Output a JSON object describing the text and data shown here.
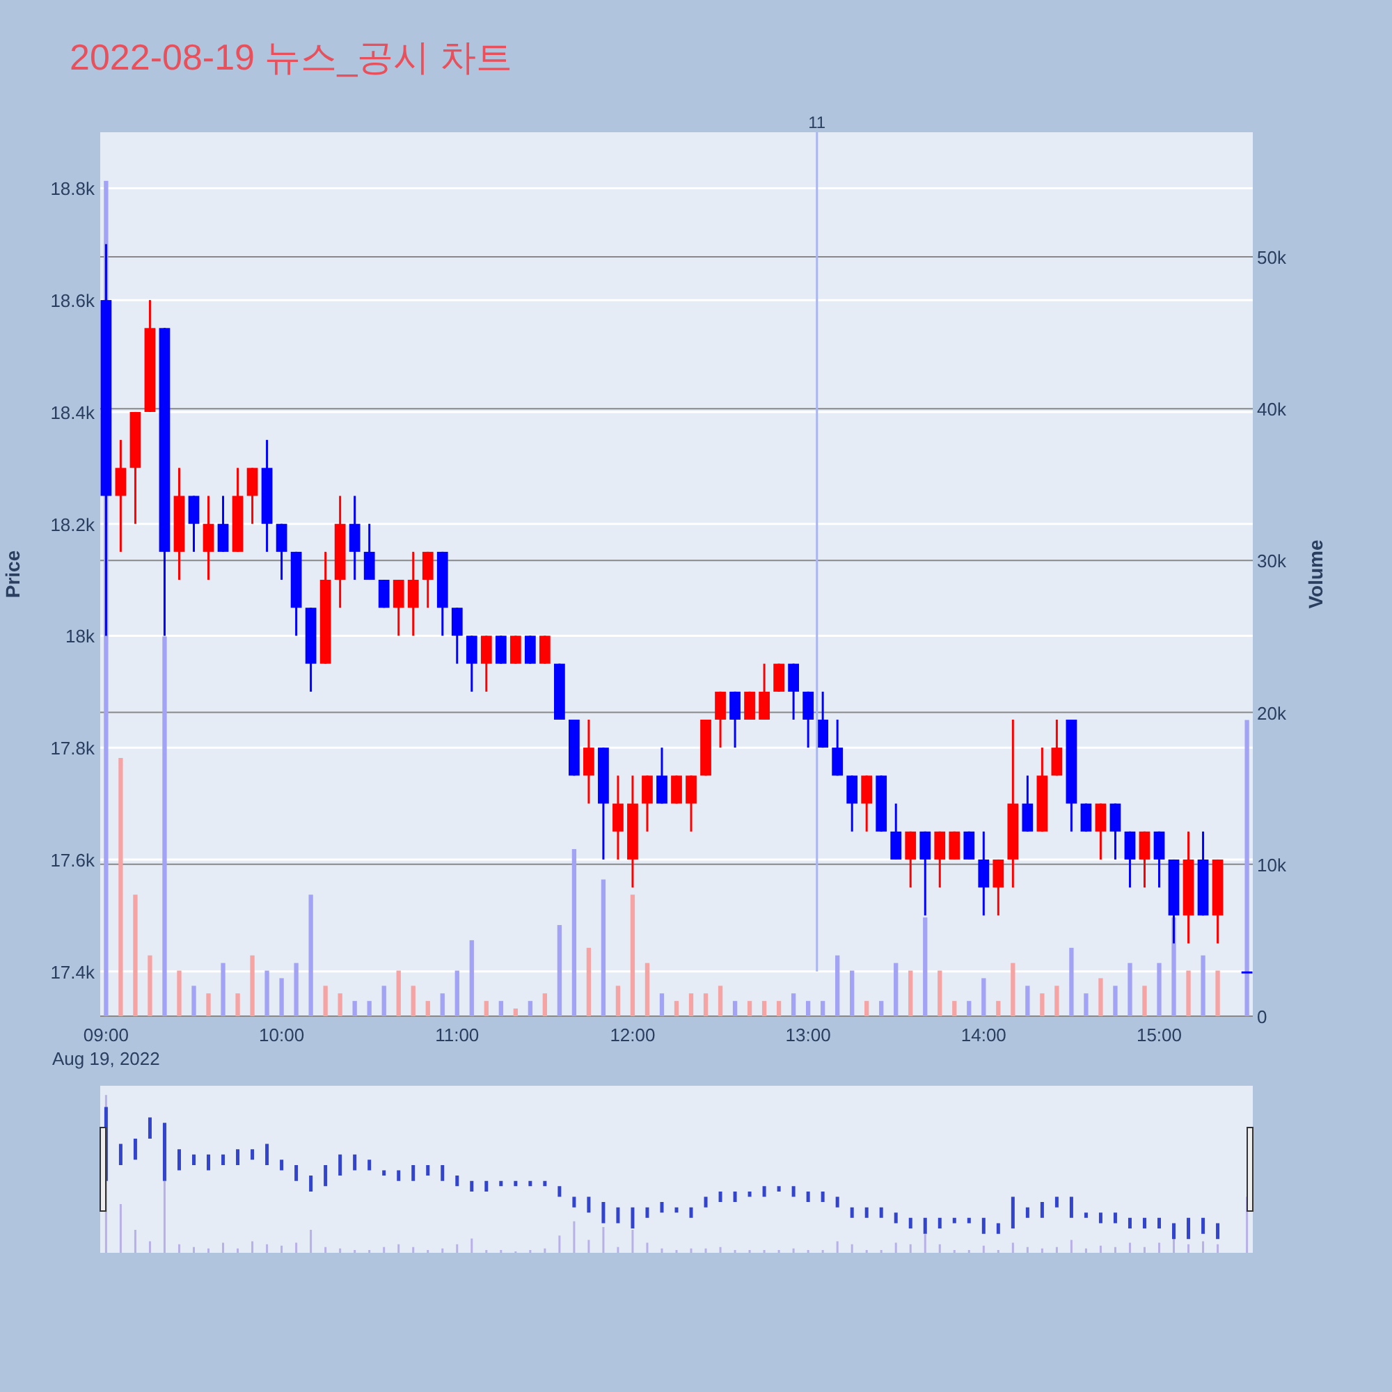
{
  "chart_data": {
    "type": "candlestick",
    "title": "2022-08-19 뉴스_공시 차트",
    "ylabel": "Price",
    "y2label": "Volume",
    "annotations": [
      "Aug 19, 2022"
    ],
    "x": [
      "2022-08-19T09:00",
      "2022-08-19T09:05",
      "2022-08-19T09:10",
      "2022-08-19T09:15",
      "2022-08-19T09:20",
      "2022-08-19T09:25",
      "2022-08-19T09:30",
      "2022-08-19T09:35",
      "2022-08-19T09:40",
      "2022-08-19T09:45",
      "2022-08-19T09:50",
      "2022-08-19T09:55",
      "2022-08-19T10:00",
      "2022-08-19T10:05",
      "2022-08-19T10:10",
      "2022-08-19T10:15",
      "2022-08-19T10:20",
      "2022-08-19T10:25",
      "2022-08-19T10:30",
      "2022-08-19T10:35",
      "2022-08-19T10:40",
      "2022-08-19T10:45",
      "2022-08-19T10:50",
      "2022-08-19T10:55",
      "2022-08-19T11:00",
      "2022-08-19T11:05",
      "2022-08-19T11:10",
      "2022-08-19T11:15",
      "2022-08-19T11:20",
      "2022-08-19T11:25",
      "2022-08-19T11:30",
      "2022-08-19T11:35",
      "2022-08-19T11:40",
      "2022-08-19T11:45",
      "2022-08-19T11:50",
      "2022-08-19T11:55",
      "2022-08-19T12:00",
      "2022-08-19T12:05",
      "2022-08-19T12:10",
      "2022-08-19T12:15",
      "2022-08-19T12:20",
      "2022-08-19T12:25",
      "2022-08-19T12:30",
      "2022-08-19T12:35",
      "2022-08-19T12:40",
      "2022-08-19T12:45",
      "2022-08-19T12:50",
      "2022-08-19T12:55",
      "2022-08-19T13:00",
      "2022-08-19T13:05",
      "2022-08-19T13:10",
      "2022-08-19T13:15",
      "2022-08-19T13:20",
      "2022-08-19T13:25",
      "2022-08-19T13:30",
      "2022-08-19T13:35",
      "2022-08-19T13:40",
      "2022-08-19T13:45",
      "2022-08-19T13:50",
      "2022-08-19T13:55",
      "2022-08-19T14:00",
      "2022-08-19T14:05",
      "2022-08-19T14:10",
      "2022-08-19T14:15",
      "2022-08-19T14:20",
      "2022-08-19T14:25",
      "2022-08-19T14:30",
      "2022-08-19T14:35",
      "2022-08-19T14:40",
      "2022-08-19T14:45",
      "2022-08-19T14:50",
      "2022-08-19T14:55",
      "2022-08-19T15:00",
      "2022-08-19T15:05",
      "2022-08-19T15:10",
      "2022-08-19T15:15",
      "2022-08-19T15:20",
      "2022-08-19T15:30"
    ],
    "series": [
      {
        "type": "candlestick",
        "ohlc": [
          [
            18600,
            18700,
            18000,
            18250
          ],
          [
            18250,
            18350,
            18150,
            18300
          ],
          [
            18300,
            18400,
            18200,
            18400
          ],
          [
            18400,
            18600,
            18400,
            18550
          ],
          [
            18550,
            18550,
            18000,
            18150
          ],
          [
            18150,
            18300,
            18100,
            18250
          ],
          [
            18250,
            18250,
            18150,
            18200
          ],
          [
            18150,
            18250,
            18100,
            18200
          ],
          [
            18200,
            18250,
            18150,
            18150
          ],
          [
            18150,
            18300,
            18150,
            18250
          ],
          [
            18250,
            18300,
            18200,
            18300
          ],
          [
            18300,
            18350,
            18150,
            18200
          ],
          [
            18200,
            18200,
            18100,
            18150
          ],
          [
            18150,
            18150,
            18000,
            18050
          ],
          [
            18050,
            18050,
            17900,
            17950
          ],
          [
            17950,
            18150,
            17950,
            18100
          ],
          [
            18100,
            18250,
            18050,
            18200
          ],
          [
            18200,
            18250,
            18100,
            18150
          ],
          [
            18150,
            18200,
            18100,
            18100
          ],
          [
            18100,
            18100,
            18050,
            18050
          ],
          [
            18050,
            18100,
            18000,
            18100
          ],
          [
            18050,
            18150,
            18000,
            18100
          ],
          [
            18100,
            18150,
            18050,
            18150
          ],
          [
            18150,
            18150,
            18000,
            18050
          ],
          [
            18050,
            18050,
            17950,
            18000
          ],
          [
            18000,
            18000,
            17900,
            17950
          ],
          [
            17950,
            18000,
            17900,
            18000
          ],
          [
            18000,
            18000,
            17950,
            17950
          ],
          [
            17950,
            18000,
            17950,
            18000
          ],
          [
            18000,
            18000,
            17950,
            17950
          ],
          [
            17950,
            18000,
            17950,
            18000
          ],
          [
            17950,
            17950,
            17850,
            17850
          ],
          [
            17850,
            17850,
            17750,
            17750
          ],
          [
            17750,
            17850,
            17700,
            17800
          ],
          [
            17800,
            17800,
            17600,
            17700
          ],
          [
            17650,
            17750,
            17600,
            17700
          ],
          [
            17600,
            17750,
            17550,
            17700
          ],
          [
            17700,
            17750,
            17650,
            17750
          ],
          [
            17750,
            17800,
            17700,
            17700
          ],
          [
            17700,
            17750,
            17700,
            17750
          ],
          [
            17700,
            17750,
            17650,
            17750
          ],
          [
            17750,
            17850,
            17750,
            17850
          ],
          [
            17850,
            17900,
            17800,
            17900
          ],
          [
            17900,
            17900,
            17800,
            17850
          ],
          [
            17850,
            17900,
            17850,
            17900
          ],
          [
            17850,
            17950,
            17850,
            17900
          ],
          [
            17900,
            17950,
            17900,
            17950
          ],
          [
            17950,
            17950,
            17850,
            17900
          ],
          [
            17900,
            17900,
            17800,
            17850
          ],
          [
            17850,
            17900,
            17800,
            17800
          ],
          [
            17800,
            17850,
            17750,
            17750
          ],
          [
            17750,
            17750,
            17650,
            17700
          ],
          [
            17700,
            17750,
            17650,
            17750
          ],
          [
            17750,
            17750,
            17650,
            17650
          ],
          [
            17650,
            17700,
            17600,
            17600
          ],
          [
            17600,
            17650,
            17550,
            17650
          ],
          [
            17650,
            17650,
            17500,
            17600
          ],
          [
            17600,
            17650,
            17550,
            17650
          ],
          [
            17600,
            17650,
            17600,
            17650
          ],
          [
            17650,
            17650,
            17600,
            17600
          ],
          [
            17600,
            17650,
            17500,
            17550
          ],
          [
            17550,
            17600,
            17500,
            17600
          ],
          [
            17600,
            17850,
            17550,
            17700
          ],
          [
            17700,
            17750,
            17650,
            17650
          ],
          [
            17650,
            17800,
            17650,
            17750
          ],
          [
            17750,
            17850,
            17750,
            17800
          ],
          [
            17850,
            17850,
            17650,
            17700
          ],
          [
            17700,
            17700,
            17650,
            17650
          ],
          [
            17650,
            17700,
            17600,
            17700
          ],
          [
            17700,
            17700,
            17600,
            17650
          ],
          [
            17650,
            17650,
            17550,
            17600
          ],
          [
            17600,
            17650,
            17550,
            17650
          ],
          [
            17650,
            17650,
            17550,
            17600
          ],
          [
            17600,
            17600,
            17450,
            17500
          ],
          [
            17500,
            17650,
            17450,
            17600
          ],
          [
            17600,
            17650,
            17500,
            17500
          ],
          [
            17500,
            17600,
            17450,
            17600
          ],
          [
            17400,
            17400,
            17400,
            17400
          ]
        ],
        "colors": [
          "#0000ff",
          "#ff0000",
          "#ff0000",
          "#ff0000",
          "#0000ff",
          "#ff0000",
          "#0000ff",
          "#ff0000",
          "#0000ff",
          "#ff0000",
          "#ff0000",
          "#0000ff",
          "#0000ff",
          "#0000ff",
          "#0000ff",
          "#ff0000",
          "#ff0000",
          "#0000ff",
          "#0000ff",
          "#0000ff",
          "#ff0000",
          "#ff0000",
          "#ff0000",
          "#0000ff",
          "#0000ff",
          "#0000ff",
          "#ff0000",
          "#0000ff",
          "#ff0000",
          "#0000ff",
          "#ff0000",
          "#0000ff",
          "#0000ff",
          "#ff0000",
          "#0000ff",
          "#ff0000",
          "#ff0000",
          "#ff0000",
          "#0000ff",
          "#ff0000",
          "#ff0000",
          "#ff0000",
          "#ff0000",
          "#0000ff",
          "#ff0000",
          "#ff0000",
          "#ff0000",
          "#0000ff",
          "#0000ff",
          "#0000ff",
          "#0000ff",
          "#0000ff",
          "#ff0000",
          "#0000ff",
          "#0000ff",
          "#ff0000",
          "#0000ff",
          "#ff0000",
          "#ff0000",
          "#0000ff",
          "#0000ff",
          "#ff0000",
          "#ff0000",
          "#0000ff",
          "#ff0000",
          "#ff0000",
          "#0000ff",
          "#0000ff",
          "#ff0000",
          "#0000ff",
          "#0000ff",
          "#ff0000",
          "#0000ff",
          "#0000ff",
          "#ff0000",
          "#0000ff",
          "#ff0000",
          "#0000ff"
        ]
      },
      {
        "type": "bar",
        "axis": "y2",
        "values": [
          55000,
          17000,
          8000,
          4000,
          25000,
          3000,
          2000,
          1500,
          3500,
          1500,
          4000,
          3000,
          2500,
          3500,
          8000,
          2000,
          1500,
          1000,
          1000,
          2000,
          3000,
          2000,
          1000,
          1500,
          3000,
          5000,
          1000,
          1000,
          500,
          1000,
          1500,
          6000,
          11000,
          4500,
          9000,
          2000,
          8000,
          3500,
          1500,
          1000,
          1500,
          1500,
          2000,
          1000,
          1000,
          1000,
          1000,
          1500,
          1000,
          1000,
          4000,
          3000,
          1000,
          1000,
          3500,
          3000,
          6500,
          3000,
          1000,
          1000,
          2500,
          1000,
          3500,
          2000,
          1500,
          2000,
          4500,
          1500,
          2500,
          2000,
          3500,
          2000,
          3500,
          6500,
          3000,
          4000,
          3000,
          19500
        ],
        "colors": [
          "#a3a3f5",
          "#f5a3a3",
          "#f5a3a3",
          "#f5a3a3",
          "#a3a3f5",
          "#f5a3a3",
          "#a3a3f5",
          "#f5a3a3",
          "#a3a3f5",
          "#f5a3a3",
          "#f5a3a3",
          "#a3a3f5",
          "#a3a3f5",
          "#a3a3f5",
          "#a3a3f5",
          "#f5a3a3",
          "#f5a3a3",
          "#a3a3f5",
          "#a3a3f5",
          "#a3a3f5",
          "#f5a3a3",
          "#f5a3a3",
          "#f5a3a3",
          "#a3a3f5",
          "#a3a3f5",
          "#a3a3f5",
          "#f5a3a3",
          "#a3a3f5",
          "#f5a3a3",
          "#a3a3f5",
          "#f5a3a3",
          "#a3a3f5",
          "#a3a3f5",
          "#f5a3a3",
          "#a3a3f5",
          "#f5a3a3",
          "#f5a3a3",
          "#f5a3a3",
          "#a3a3f5",
          "#f5a3a3",
          "#f5a3a3",
          "#f5a3a3",
          "#f5a3a3",
          "#a3a3f5",
          "#f5a3a3",
          "#f5a3a3",
          "#f5a3a3",
          "#a3a3f5",
          "#a3a3f5",
          "#a3a3f5",
          "#a3a3f5",
          "#a3a3f5",
          "#f5a3a3",
          "#a3a3f5",
          "#a3a3f5",
          "#f5a3a3",
          "#a3a3f5",
          "#f5a3a3",
          "#f5a3a3",
          "#a3a3f5",
          "#a3a3f5",
          "#f5a3a3",
          "#f5a3a3",
          "#a3a3f5",
          "#f5a3a3",
          "#f5a3a3",
          "#a3a3f5",
          "#a3a3f5",
          "#f5a3a3",
          "#a3a3f5",
          "#a3a3f5",
          "#f5a3a3",
          "#a3a3f5",
          "#a3a3f5",
          "#f5a3a3",
          "#a3a3f5",
          "#f5a3a3",
          "#a3a3f5"
        ]
      }
    ],
    "xlim": [
      "2022-08-19T08:58",
      "2022-08-19T15:32"
    ],
    "xticks": [
      {
        "value": "2022-08-19T09:00",
        "label": "09:00"
      },
      {
        "value": "2022-08-19T10:00",
        "label": "10:00"
      },
      {
        "value": "2022-08-19T11:00",
        "label": "11:00"
      },
      {
        "value": "2022-08-19T12:00",
        "label": "12:00"
      },
      {
        "value": "2022-08-19T13:00",
        "label": "13:00"
      },
      {
        "value": "2022-08-19T14:00",
        "label": "14:00"
      },
      {
        "value": "2022-08-19T15:00",
        "label": "15:00"
      }
    ],
    "ylim": [
      17320,
      18900
    ],
    "yticks": [
      {
        "value": 17400,
        "label": "17.4k"
      },
      {
        "value": 17600,
        "label": "17.6k"
      },
      {
        "value": 17800,
        "label": "17.8k"
      },
      {
        "value": 18000,
        "label": "18k"
      },
      {
        "value": 18200,
        "label": "18.2k"
      },
      {
        "value": 18400,
        "label": "18.4k"
      },
      {
        "value": 18600,
        "label": "18.6k"
      },
      {
        "value": 18800,
        "label": "18.8k"
      }
    ],
    "y2lim": [
      0,
      58200
    ],
    "y2ticks": [
      0,
      {
        "value": 10000,
        "label": "10k"
      },
      {
        "value": 20000,
        "label": "20k"
      },
      {
        "value": 30000,
        "label": "30k"
      },
      {
        "value": 40000,
        "label": "40k"
      },
      {
        "value": 50000,
        "label": "50k"
      }
    ],
    "ref_lines": [
      {
        "axis": "x",
        "value": "2022-08-19T13:03",
        "label": "11",
        "color": "#aab6f2"
      }
    ],
    "grid": "y"
  }
}
